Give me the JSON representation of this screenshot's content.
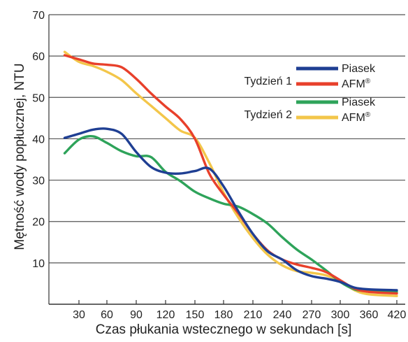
{
  "chart_data": {
    "type": "line",
    "xlabel": "Czas płukania wstecznego w sekundach [s]",
    "ylabel": "Mętność wody popłucznej, NTU",
    "ylim": [
      0,
      70
    ],
    "yticks": [
      10,
      20,
      30,
      40,
      50,
      60,
      70
    ],
    "xticks": [
      30,
      60,
      90,
      120,
      150,
      180,
      210,
      240,
      270,
      300,
      360,
      420
    ],
    "grid": "horizontal",
    "legend_position": "right",
    "legend_groups": [
      {
        "label": "Tydzień 1",
        "series": [
          "Piasek",
          "AFM®"
        ]
      },
      {
        "label": "Tydzień 2",
        "series": [
          "Piasek",
          "AFM®"
        ]
      }
    ],
    "series": [
      {
        "name": "Piasek",
        "group": "Tydzień 1",
        "color": "#1f3f93",
        "points": [
          [
            15,
            40.2
          ],
          [
            30,
            41.2
          ],
          [
            45,
            42.2
          ],
          [
            60,
            42.4
          ],
          [
            75,
            41.2
          ],
          [
            90,
            36.8
          ],
          [
            105,
            33.2
          ],
          [
            120,
            31.8
          ],
          [
            135,
            31.6
          ],
          [
            150,
            32.2
          ],
          [
            165,
            32.8
          ],
          [
            180,
            28.5
          ],
          [
            195,
            22.5
          ],
          [
            210,
            17.0
          ],
          [
            225,
            12.8
          ],
          [
            240,
            10.8
          ],
          [
            255,
            8.2
          ],
          [
            270,
            6.8
          ],
          [
            285,
            6.2
          ],
          [
            300,
            5.4
          ],
          [
            330,
            4.0
          ],
          [
            360,
            3.6
          ],
          [
            420,
            3.4
          ]
        ]
      },
      {
        "name": "AFM®",
        "group": "Tydzień 1",
        "color": "#e8402b",
        "points": [
          [
            15,
            60.2
          ],
          [
            30,
            59.2
          ],
          [
            45,
            58.2
          ],
          [
            60,
            57.9
          ],
          [
            75,
            57.3
          ],
          [
            90,
            54.5
          ],
          [
            105,
            51.0
          ],
          [
            120,
            47.8
          ],
          [
            135,
            44.8
          ],
          [
            150,
            40.0
          ],
          [
            165,
            31.6
          ],
          [
            180,
            26.5
          ],
          [
            195,
            22.0
          ],
          [
            210,
            17.0
          ],
          [
            225,
            13.0
          ],
          [
            240,
            10.8
          ],
          [
            255,
            9.6
          ],
          [
            270,
            8.8
          ],
          [
            285,
            7.8
          ],
          [
            300,
            5.8
          ],
          [
            330,
            3.8
          ],
          [
            360,
            3.0
          ],
          [
            420,
            2.6
          ]
        ]
      },
      {
        "name": "Piasek",
        "group": "Tydzień 2",
        "color": "#2ea35a",
        "points": [
          [
            15,
            36.5
          ],
          [
            30,
            39.8
          ],
          [
            45,
            40.6
          ],
          [
            60,
            39.0
          ],
          [
            75,
            37.0
          ],
          [
            90,
            35.8
          ],
          [
            105,
            35.6
          ],
          [
            120,
            32.0
          ],
          [
            135,
            29.8
          ],
          [
            150,
            27.2
          ],
          [
            165,
            25.6
          ],
          [
            180,
            24.3
          ],
          [
            195,
            23.6
          ],
          [
            210,
            21.8
          ],
          [
            225,
            19.5
          ],
          [
            240,
            16.2
          ],
          [
            255,
            13.2
          ],
          [
            270,
            10.8
          ],
          [
            285,
            8.2
          ],
          [
            300,
            5.4
          ],
          [
            330,
            3.6
          ],
          [
            360,
            3.2
          ],
          [
            420,
            3.0
          ]
        ]
      },
      {
        "name": "AFM®",
        "group": "Tydzień 2",
        "color": "#f3c64a",
        "points": [
          [
            15,
            61.0
          ],
          [
            30,
            58.6
          ],
          [
            45,
            57.6
          ],
          [
            60,
            56.2
          ],
          [
            75,
            54.2
          ],
          [
            90,
            51.0
          ],
          [
            105,
            48.0
          ],
          [
            120,
            45.0
          ],
          [
            135,
            42.0
          ],
          [
            150,
            40.2
          ],
          [
            165,
            34.2
          ],
          [
            180,
            27.0
          ],
          [
            195,
            21.0
          ],
          [
            210,
            16.0
          ],
          [
            225,
            12.0
          ],
          [
            240,
            9.4
          ],
          [
            255,
            8.0
          ],
          [
            270,
            7.6
          ],
          [
            285,
            7.0
          ],
          [
            300,
            5.6
          ],
          [
            330,
            3.4
          ],
          [
            360,
            2.4
          ],
          [
            420,
            2.0
          ]
        ]
      }
    ]
  }
}
